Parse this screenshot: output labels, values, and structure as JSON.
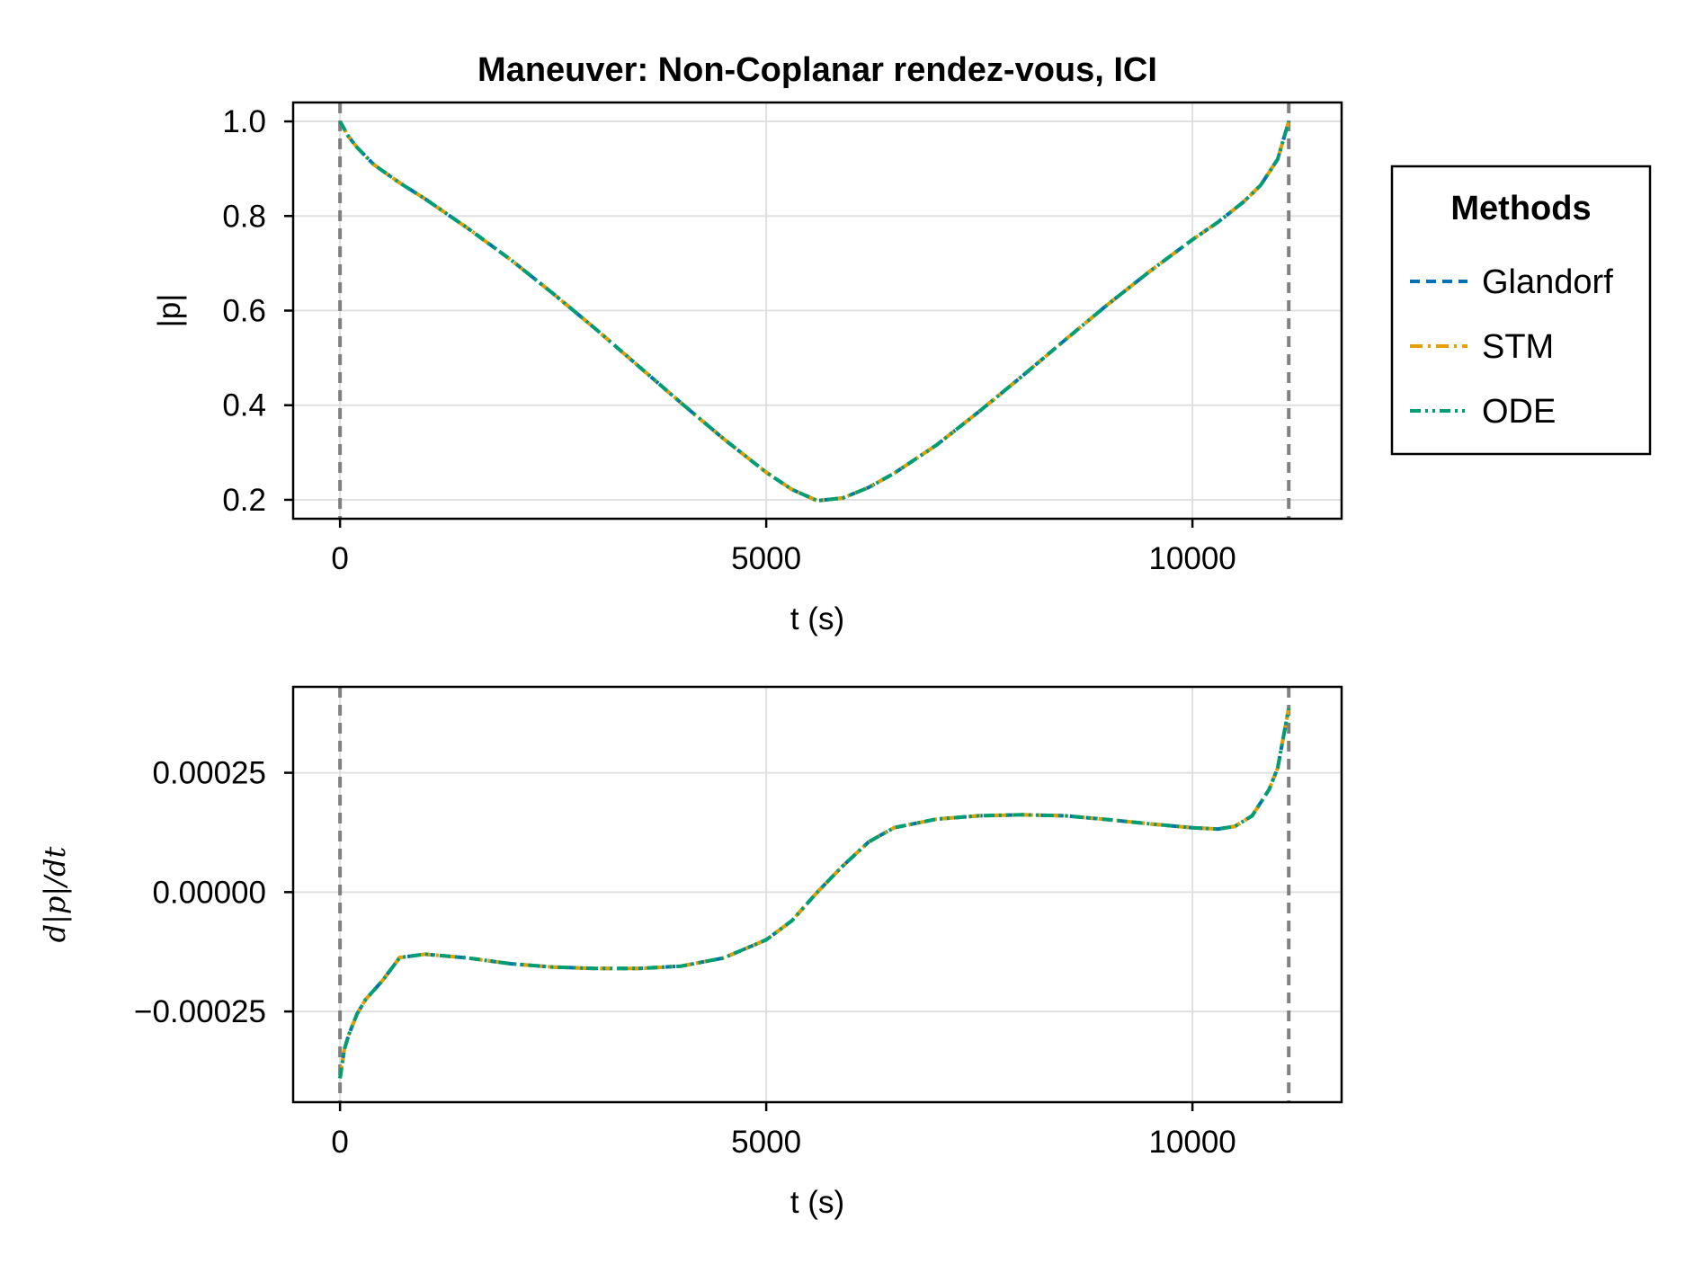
{
  "chart_data": [
    {
      "type": "line",
      "title": "Maneuver: Non-Coplanar rendez-vous, ICI",
      "xlabel": "t (s)",
      "ylabel": "|p|",
      "xlim": [
        -550,
        11750
      ],
      "ylim": [
        0.16,
        1.04
      ],
      "xticks": [
        0,
        5000,
        10000
      ],
      "xtick_labels": [
        "0",
        "5000",
        "10000"
      ],
      "yticks": [
        0.2,
        0.4,
        0.6,
        0.8,
        1.0
      ],
      "ytick_labels": [
        "0.2",
        "0.4",
        "0.6",
        "0.8",
        "1.0"
      ],
      "grid": true,
      "vlines": [
        0,
        11130
      ],
      "x": [
        0,
        100,
        200,
        400,
        700,
        1000,
        1500,
        2000,
        2500,
        3000,
        3500,
        4000,
        4500,
        5000,
        5300,
        5600,
        5900,
        6200,
        6500,
        7000,
        7500,
        8000,
        8500,
        9000,
        9500,
        10000,
        10300,
        10600,
        10800,
        11000,
        11130
      ],
      "series": [
        {
          "name": "Glandorf",
          "color": "#0072B2",
          "dash": "dashed",
          "values": [
            1.0,
            0.968,
            0.945,
            0.908,
            0.87,
            0.836,
            0.774,
            0.708,
            0.636,
            0.561,
            0.483,
            0.405,
            0.329,
            0.258,
            0.222,
            0.198,
            0.204,
            0.226,
            0.256,
            0.316,
            0.387,
            0.461,
            0.537,
            0.612,
            0.683,
            0.75,
            0.787,
            0.83,
            0.865,
            0.92,
            1.0
          ]
        },
        {
          "name": "STM",
          "color": "#E69F00",
          "dash": "dashdot",
          "values": [
            1.0,
            0.968,
            0.945,
            0.908,
            0.87,
            0.836,
            0.774,
            0.708,
            0.636,
            0.561,
            0.483,
            0.405,
            0.329,
            0.258,
            0.222,
            0.198,
            0.204,
            0.226,
            0.256,
            0.316,
            0.387,
            0.461,
            0.537,
            0.612,
            0.683,
            0.75,
            0.787,
            0.83,
            0.865,
            0.92,
            1.0
          ]
        },
        {
          "name": "ODE",
          "color": "#009E73",
          "dash": "dashdotdot",
          "values": [
            1.0,
            0.968,
            0.945,
            0.908,
            0.87,
            0.836,
            0.774,
            0.708,
            0.636,
            0.561,
            0.483,
            0.405,
            0.329,
            0.258,
            0.222,
            0.198,
            0.204,
            0.226,
            0.256,
            0.316,
            0.387,
            0.461,
            0.537,
            0.612,
            0.683,
            0.75,
            0.787,
            0.83,
            0.865,
            0.92,
            1.0
          ]
        }
      ],
      "legend": {
        "title": "Methods",
        "position": "right"
      }
    },
    {
      "type": "line",
      "title": "",
      "xlabel": "t (s)",
      "ylabel": "d|p|/dt",
      "xlim": [
        -550,
        11750
      ],
      "ylim": [
        -0.00044,
        0.00043
      ],
      "xticks": [
        0,
        5000,
        10000
      ],
      "xtick_labels": [
        "0",
        "5000",
        "10000"
      ],
      "yticks": [
        -0.00025,
        0.0,
        0.00025
      ],
      "ytick_labels": [
        "−0.00025",
        "0.00000",
        "0.00025"
      ],
      "grid": true,
      "vlines": [
        0,
        11130
      ],
      "x": [
        0,
        50,
        100,
        200,
        300,
        500,
        700,
        1000,
        1500,
        2000,
        2500,
        3000,
        3500,
        4000,
        4500,
        5000,
        5300,
        5600,
        5900,
        6200,
        6500,
        7000,
        7500,
        8000,
        8500,
        9000,
        9500,
        10000,
        10300,
        10500,
        10700,
        10900,
        11000,
        11130
      ],
      "series": [
        {
          "name": "Glandorf",
          "color": "#0072B2",
          "dash": "dashed",
          "values": [
            -0.00039,
            -0.00033,
            -0.0003,
            -0.000255,
            -0.000225,
            -0.000185,
            -0.000137,
            -0.00013,
            -0.000138,
            -0.00015,
            -0.000157,
            -0.00016,
            -0.00016,
            -0.000155,
            -0.000138,
            -0.0001,
            -6e-05,
            0.0,
            5.5e-05,
            0.000105,
            0.000135,
            0.000153,
            0.00016,
            0.000162,
            0.00016,
            0.000152,
            0.000143,
            0.000135,
            0.000132,
            0.000138,
            0.00016,
            0.000215,
            0.00026,
            0.000385
          ]
        },
        {
          "name": "STM",
          "color": "#E69F00",
          "dash": "dashdot",
          "values": [
            -0.00039,
            -0.00033,
            -0.0003,
            -0.000255,
            -0.000225,
            -0.000185,
            -0.000137,
            -0.00013,
            -0.000138,
            -0.00015,
            -0.000157,
            -0.00016,
            -0.00016,
            -0.000155,
            -0.000138,
            -0.0001,
            -6e-05,
            0.0,
            5.5e-05,
            0.000105,
            0.000135,
            0.000153,
            0.00016,
            0.000162,
            0.00016,
            0.000152,
            0.000143,
            0.000135,
            0.000132,
            0.000138,
            0.00016,
            0.000215,
            0.00026,
            0.000385
          ]
        },
        {
          "name": "ODE",
          "color": "#009E73",
          "dash": "dashdotdot",
          "values": [
            -0.00039,
            -0.00033,
            -0.0003,
            -0.000255,
            -0.000225,
            -0.000185,
            -0.000137,
            -0.00013,
            -0.000138,
            -0.00015,
            -0.000157,
            -0.00016,
            -0.00016,
            -0.000155,
            -0.000138,
            -0.0001,
            -6e-05,
            0.0,
            5.5e-05,
            0.000105,
            0.000135,
            0.000153,
            0.00016,
            0.000162,
            0.00016,
            0.000152,
            0.000143,
            0.000135,
            0.000132,
            0.000138,
            0.00016,
            0.000215,
            0.00026,
            0.000385
          ]
        }
      ]
    }
  ],
  "legend": {
    "title": "Methods",
    "items": [
      {
        "name": "Glandorf",
        "color": "#0072B2",
        "dash": "dashed"
      },
      {
        "name": "STM",
        "color": "#E69F00",
        "dash": "dashdot"
      },
      {
        "name": "ODE",
        "color": "#009E73",
        "dash": "dashdotdot"
      }
    ]
  }
}
